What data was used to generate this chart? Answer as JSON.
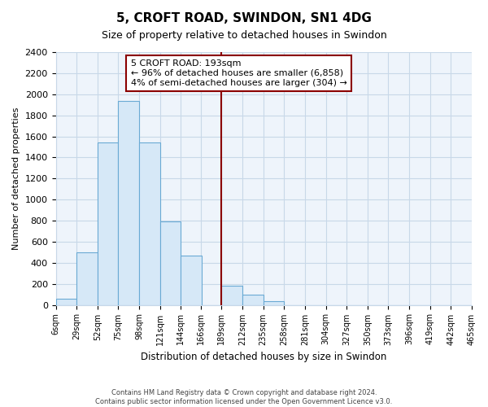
{
  "title": "5, CROFT ROAD, SWINDON, SN1 4DG",
  "subtitle": "Size of property relative to detached houses in Swindon",
  "xlabel": "Distribution of detached houses by size in Swindon",
  "ylabel": "Number of detached properties",
  "bar_left_edges": [
    6,
    29,
    52,
    75,
    98,
    121,
    144,
    166,
    189,
    212,
    235,
    258,
    281,
    304,
    327,
    350,
    373,
    396,
    419,
    442
  ],
  "bar_heights": [
    55,
    500,
    1540,
    1940,
    1540,
    795,
    465,
    0,
    185,
    95,
    35,
    0,
    0,
    0,
    0,
    0,
    0,
    0,
    0,
    0
  ],
  "bin_width": 23,
  "tick_labels": [
    "6sqm",
    "29sqm",
    "52sqm",
    "75sqm",
    "98sqm",
    "121sqm",
    "144sqm",
    "166sqm",
    "189sqm",
    "212sqm",
    "235sqm",
    "258sqm",
    "281sqm",
    "304sqm",
    "327sqm",
    "350sqm",
    "373sqm",
    "396sqm",
    "419sqm",
    "442sqm",
    "465sqm"
  ],
  "bar_color": "#d6e8f7",
  "bar_edge_color": "#6aaad4",
  "vline_x_bin_index": 8,
  "vline_color": "#8b0000",
  "ylim": [
    0,
    2400
  ],
  "yticks": [
    0,
    200,
    400,
    600,
    800,
    1000,
    1200,
    1400,
    1600,
    1800,
    2000,
    2200,
    2400
  ],
  "annotation_title": "5 CROFT ROAD: 193sqm",
  "annotation_line1": "← 96% of detached houses are smaller (6,858)",
  "annotation_line2": "4% of semi-detached houses are larger (304) →",
  "footer1": "Contains HM Land Registry data © Crown copyright and database right 2024.",
  "footer2": "Contains public sector information licensed under the Open Government Licence v3.0.",
  "background_color": "#ffffff",
  "plot_bg_color": "#eef4fb",
  "grid_color": "#c8d8e8"
}
